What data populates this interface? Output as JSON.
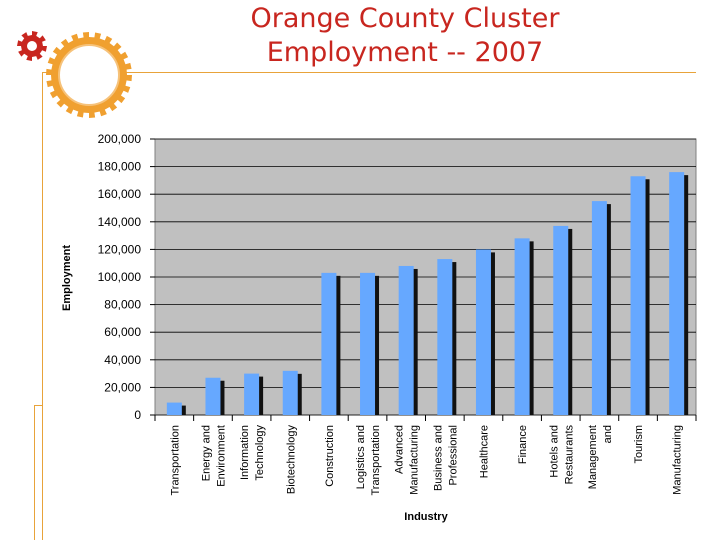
{
  "title": {
    "line1": "Orange County Cluster",
    "line2": "Employment -- 2007"
  },
  "colors": {
    "title": "#c8261f",
    "accent": "#f0a030",
    "bar": "#66a8ff",
    "bar_shadow": "#111111",
    "plot_bg": "#c0c0c0"
  },
  "icons": [
    "gear-icon",
    "gear-icon"
  ],
  "chart_data": {
    "type": "bar",
    "title": "",
    "xlabel": "Industry",
    "ylabel": "Employment",
    "ylim": [
      0,
      200000
    ],
    "yticks": [
      "200,000",
      "180,000",
      "160,000",
      "140,000",
      "120,000",
      "100,000",
      "80,000",
      "60,000",
      "40,000",
      "20,000",
      "0"
    ],
    "ytick_values": [
      200000,
      180000,
      160000,
      140000,
      120000,
      100000,
      80000,
      60000,
      40000,
      20000,
      0
    ],
    "grid": true,
    "legend": "none",
    "categories": [
      [
        "Transportation"
      ],
      [
        "Energy and",
        "Environment"
      ],
      [
        "Information",
        "Technology"
      ],
      [
        "Biotechnology"
      ],
      [
        "Construction"
      ],
      [
        "Logistics and",
        "Transportation"
      ],
      [
        "Advanced",
        "Manufacturing"
      ],
      [
        "Business and",
        "Professional"
      ],
      [
        "Healthcare"
      ],
      [
        "Finance"
      ],
      [
        "Hotels and",
        "Restaurants"
      ],
      [
        "Management",
        "and"
      ],
      [
        "Tourism"
      ],
      [
        "Manufacturing"
      ]
    ],
    "values": [
      9000,
      27000,
      30000,
      32000,
      103000,
      103000,
      108000,
      113000,
      120000,
      128000,
      137000,
      155000,
      173000,
      176000
    ]
  }
}
